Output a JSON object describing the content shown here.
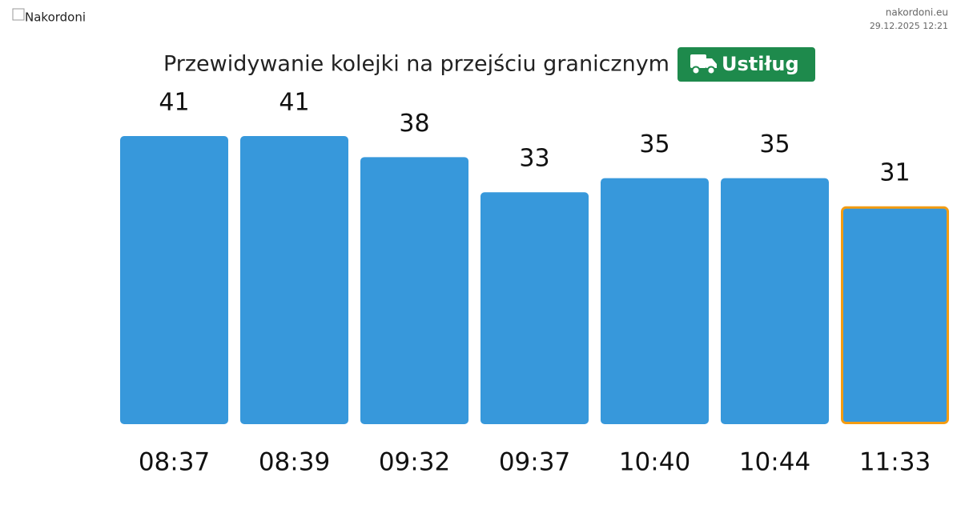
{
  "header": {
    "logo_alt": "Nakordoni",
    "site": "nakordoni.eu",
    "timestamp": "29.12.2025 12:21"
  },
  "chart_data": {
    "type": "bar",
    "title": "Przewidywanie kolejki na przejściu granicznym",
    "badge": "Ustiług",
    "categories": [
      "08:37",
      "08:39",
      "09:32",
      "09:37",
      "10:40",
      "10:44",
      "11:33"
    ],
    "values": [
      41,
      41,
      38,
      33,
      35,
      35,
      31
    ],
    "color": "#3798db",
    "highlight_color": "#f39c12",
    "badge_color": "#1e8a4c"
  }
}
